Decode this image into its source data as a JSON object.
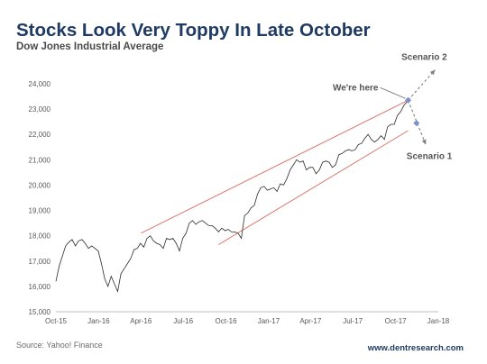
{
  "header": {
    "title": "Stocks Look Very Toppy In Late October",
    "subtitle": "Dow Jones Industrial Average"
  },
  "footer": {
    "source": "Source: Yahoo! Finance",
    "website": "www.dentresearch.com"
  },
  "chart_data": {
    "type": "line",
    "title": "Stocks Look Very Toppy In Late October",
    "subtitle": "Dow Jones Industrial Average",
    "xlabel": "",
    "ylabel": "",
    "xlim": [
      "2015-10-01",
      "2018-01-01"
    ],
    "ylim": [
      15000,
      24000
    ],
    "x_ticks": [
      "2015-10-01",
      "2016-01-01",
      "2016-04-01",
      "2016-07-01",
      "2016-10-01",
      "2017-01-01",
      "2017-04-01",
      "2017-07-01",
      "2017-10-01",
      "2018-01-01"
    ],
    "x_tick_labels": [
      "Oct-15",
      "Jan-16",
      "Apr-16",
      "Jul-16",
      "Oct-16",
      "Jan-17",
      "Apr-17",
      "Jul-17",
      "Oct-17",
      "Jan-18"
    ],
    "y_ticks": [
      15000,
      16000,
      17000,
      18000,
      19000,
      20000,
      21000,
      22000,
      23000,
      24000
    ],
    "y_tick_labels": [
      "15,000",
      "16,000",
      "17,000",
      "18,000",
      "19,000",
      "20,000",
      "21,000",
      "22,000",
      "23,000",
      "24,000"
    ],
    "grid": false,
    "legend": "none",
    "colors": {
      "series": "#2b2b2b",
      "channel": "#d9776c",
      "projection": "#7f7f7f",
      "marker": "#7b8fd1"
    },
    "series": [
      {
        "x": [
          "2015-10-01",
          "2015-10-08",
          "2015-10-15",
          "2015-10-22",
          "2015-10-29",
          "2015-11-05",
          "2015-11-12",
          "2015-11-19",
          "2015-11-26",
          "2015-12-03",
          "2015-12-10",
          "2015-12-17",
          "2015-12-24",
          "2015-12-31",
          "2016-01-07",
          "2016-01-14",
          "2016-01-21",
          "2016-01-28",
          "2016-02-04",
          "2016-02-11",
          "2016-02-18",
          "2016-02-25",
          "2016-03-03",
          "2016-03-10",
          "2016-03-17",
          "2016-03-24",
          "2016-03-31",
          "2016-04-07",
          "2016-04-14",
          "2016-04-21",
          "2016-04-28",
          "2016-05-05",
          "2016-05-12",
          "2016-05-19",
          "2016-05-26",
          "2016-06-02",
          "2016-06-09",
          "2016-06-16",
          "2016-06-23",
          "2016-06-30",
          "2016-07-07",
          "2016-07-14",
          "2016-07-21",
          "2016-07-28",
          "2016-08-04",
          "2016-08-11",
          "2016-08-18",
          "2016-08-25",
          "2016-09-01",
          "2016-09-08",
          "2016-09-15",
          "2016-09-22",
          "2016-09-29",
          "2016-10-06",
          "2016-10-13",
          "2016-10-20",
          "2016-10-27",
          "2016-11-03",
          "2016-11-10",
          "2016-11-17",
          "2016-11-24",
          "2016-12-01",
          "2016-12-08",
          "2016-12-15",
          "2016-12-22",
          "2016-12-29",
          "2017-01-05",
          "2017-01-12",
          "2017-01-19",
          "2017-01-26",
          "2017-02-02",
          "2017-02-09",
          "2017-02-16",
          "2017-02-23",
          "2017-03-02",
          "2017-03-09",
          "2017-03-16",
          "2017-03-23",
          "2017-03-30",
          "2017-04-06",
          "2017-04-13",
          "2017-04-20",
          "2017-04-27",
          "2017-05-04",
          "2017-05-11",
          "2017-05-18",
          "2017-05-25",
          "2017-06-01",
          "2017-06-08",
          "2017-06-15",
          "2017-06-22",
          "2017-06-29",
          "2017-07-06",
          "2017-07-13",
          "2017-07-20",
          "2017-07-27",
          "2017-08-03",
          "2017-08-10",
          "2017-08-17",
          "2017-08-24",
          "2017-08-31",
          "2017-09-07",
          "2017-09-14",
          "2017-09-21",
          "2017-09-28",
          "2017-10-05",
          "2017-10-12",
          "2017-10-19",
          "2017-10-26"
        ],
        "values": [
          16200,
          16800,
          17200,
          17600,
          17750,
          17850,
          17600,
          17800,
          17850,
          17700,
          17500,
          17600,
          17500,
          17400,
          16900,
          16300,
          16000,
          16400,
          16100,
          15800,
          16500,
          16700,
          16900,
          17100,
          17450,
          17500,
          17700,
          17550,
          17900,
          18000,
          17800,
          17700,
          17650,
          17500,
          17900,
          17850,
          17900,
          17700,
          17400,
          17900,
          18100,
          18500,
          18600,
          18450,
          18550,
          18600,
          18500,
          18400,
          18400,
          18300,
          18150,
          18300,
          18200,
          18250,
          18150,
          18150,
          18100,
          17900,
          18800,
          18900,
          19100,
          19200,
          19650,
          19900,
          19950,
          19800,
          19850,
          19900,
          19750,
          20050,
          20000,
          20250,
          20600,
          20800,
          21000,
          20900,
          20950,
          20600,
          20700,
          20700,
          20450,
          20600,
          20900,
          20950,
          20900,
          20700,
          20800,
          21200,
          21250,
          21350,
          21400,
          21350,
          21400,
          21600,
          21650,
          21850,
          22000,
          21800,
          21700,
          21800,
          21950,
          21800,
          22300,
          22400,
          22400,
          22750,
          22900,
          23150,
          23300
        ]
      }
    ],
    "channel": [
      {
        "name": "upper",
        "from": [
          "2016-04-01",
          18100
        ],
        "to": [
          "2017-10-28",
          23350
        ]
      },
      {
        "name": "lower",
        "from": [
          "2016-09-15",
          17650
        ],
        "to": [
          "2017-10-28",
          22150
        ]
      }
    ],
    "projections": [
      {
        "label": "Scenario 2",
        "from": [
          "2017-10-28",
          23350
        ],
        "to": [
          "2017-12-25",
          24550
        ]
      },
      {
        "label": "Scenario 1",
        "from": [
          "2017-10-28",
          23350
        ],
        "to": [
          "2017-12-05",
          21600
        ]
      }
    ],
    "markers": [
      {
        "x": "2017-10-28",
        "y": 23350
      },
      {
        "x": "2017-11-15",
        "y": 22450
      }
    ],
    "annotations": [
      {
        "text": "We're here",
        "x": "2017-10-28",
        "y": 23350
      },
      {
        "text": "Scenario 2"
      },
      {
        "text": "Scenario 1"
      }
    ]
  }
}
